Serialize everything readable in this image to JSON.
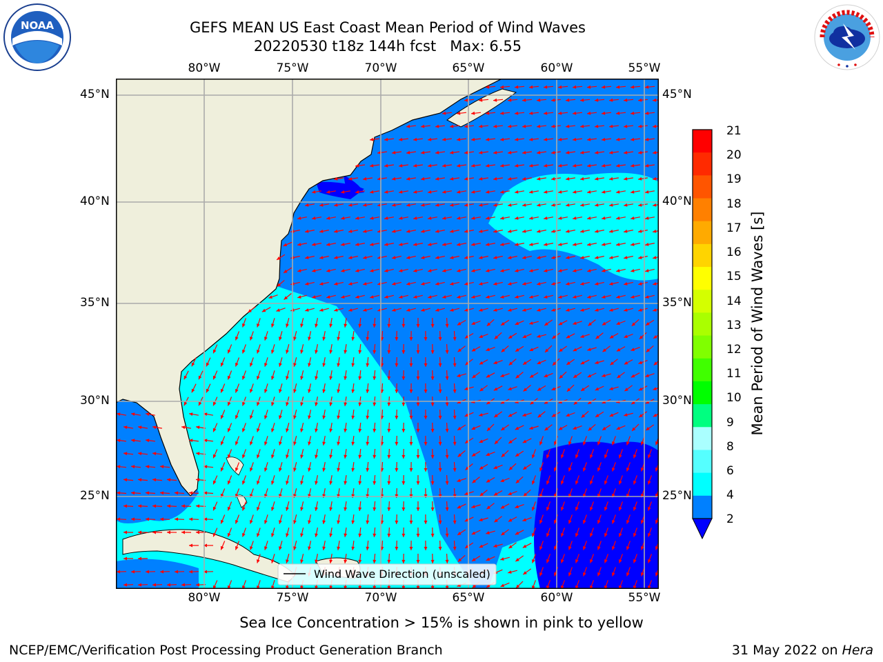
{
  "title_line1": "GEFS MEAN US East Coast Mean Period of Wind Waves",
  "title_line2": "20220530 t18z 144h fcst   Max: 6.55",
  "logos": {
    "left": {
      "name": "NOAA",
      "text": "NOAA",
      "ring_text": "NATIONAL OCEANIC AND ATMOSPHERIC ADMINISTRATION · U.S. DEPARTMENT OF COMMERCE"
    },
    "right": {
      "name": "National Weather Service",
      "ring_text": "NATIONAL WEATHER SERVICE"
    }
  },
  "map": {
    "lon_labels": [
      "80°W",
      "75°W",
      "70°W",
      "65°W",
      "60°W",
      "55°W"
    ],
    "lat_labels": [
      "45°N",
      "40°N",
      "35°N",
      "30°N",
      "25°N"
    ],
    "legend_label": "Wind Wave Direction (unscaled)",
    "colors": {
      "land": "#efefdc",
      "blue_2_4": "#0080ff",
      "cyan_4_6": "#00ffff",
      "dark_0_2": "#0000ff",
      "arrow": "#ff0000",
      "grid": "#aaaaaa",
      "coast": "#000000"
    }
  },
  "colorbar": {
    "label": "Mean Period of Wind Waves [s]",
    "ticks": [
      "21",
      "20",
      "19",
      "18",
      "17",
      "16",
      "15",
      "14",
      "13",
      "12",
      "11",
      "10",
      "9",
      "8",
      "6",
      "4",
      "2"
    ],
    "colors": [
      "#ff0000",
      "#ff2a00",
      "#ff5500",
      "#ff8000",
      "#ffaa00",
      "#ffd400",
      "#ffff00",
      "#d4ff00",
      "#aaff00",
      "#80ff00",
      "#40ff00",
      "#00ff00",
      "#00ff80",
      "#aaffff",
      "#55ffff",
      "#00ffff",
      "#0080ff"
    ],
    "extend_color": "#0000ff"
  },
  "note": "Sea Ice Concentration > 15% is shown in pink to yellow",
  "footer_left": "NCEP/EMC/Verification Post Processing Product Generation Branch",
  "footer_date": "31 May 2022 on ",
  "footer_machine": "Hera"
}
